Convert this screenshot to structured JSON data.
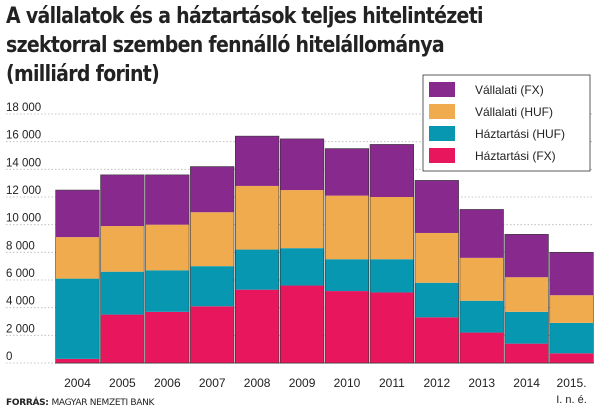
{
  "title_lines": [
    "A vállalatok és a háztartások teljes hitelintézeti",
    "szektorral szemben  fennálló hitelállománya",
    "(milliárd forint)"
  ],
  "source": {
    "label": "FORRÁS:",
    "text": "MAGYAR NEMZETI BANK"
  },
  "chart_data": {
    "type": "bar",
    "stacked": true,
    "title": "A vállalatok és a háztartások teljes hitelintézeti szektorral szemben  fennálló hitelállománya (milliárd forint)",
    "categories": [
      "2004",
      "2005",
      "2006",
      "2007",
      "2008",
      "2009",
      "2010",
      "2011",
      "2012",
      "2013",
      "2014",
      "2015."
    ],
    "category_notes": {
      "2015.": "I. n. é."
    },
    "series": [
      {
        "name": "Háztartási (FX)",
        "color": "#e8175d",
        "values": [
          300,
          3500,
          3700,
          4100,
          5300,
          5600,
          5200,
          5100,
          3300,
          2200,
          1400,
          700
        ]
      },
      {
        "name": "Háztartási (HUF)",
        "color": "#0797b0",
        "values": [
          5800,
          3100,
          3000,
          2900,
          2900,
          2700,
          2300,
          2400,
          2500,
          2300,
          2300,
          2200
        ]
      },
      {
        "name": "Vállalati (HUF)",
        "color": "#f0ab4e",
        "values": [
          3000,
          3300,
          3300,
          3900,
          4600,
          4200,
          4600,
          4500,
          3600,
          3100,
          2500,
          2000
        ]
      },
      {
        "name": "Vállalati (FX)",
        "color": "#882a8d",
        "values": [
          3400,
          3700,
          3600,
          3300,
          3600,
          3700,
          3400,
          3800,
          3800,
          3500,
          3100,
          3100
        ]
      }
    ],
    "legend_order": [
      "Vállalati (FX)",
      "Vállalati (HUF)",
      "Háztartási (HUF)",
      "Háztartási (FX)"
    ],
    "legend_position": "top-right",
    "ylim": [
      0,
      18000
    ],
    "yticks": [
      0,
      2000,
      4000,
      6000,
      8000,
      10000,
      12000,
      14000,
      16000,
      18000
    ],
    "ytick_labels": [
      "0",
      "2 000",
      "4 000",
      "6 000",
      "8 000",
      "10 000",
      "12 000",
      "14 000",
      "16 000",
      "18 000"
    ],
    "grid": true,
    "xlabel": "",
    "ylabel": ""
  }
}
